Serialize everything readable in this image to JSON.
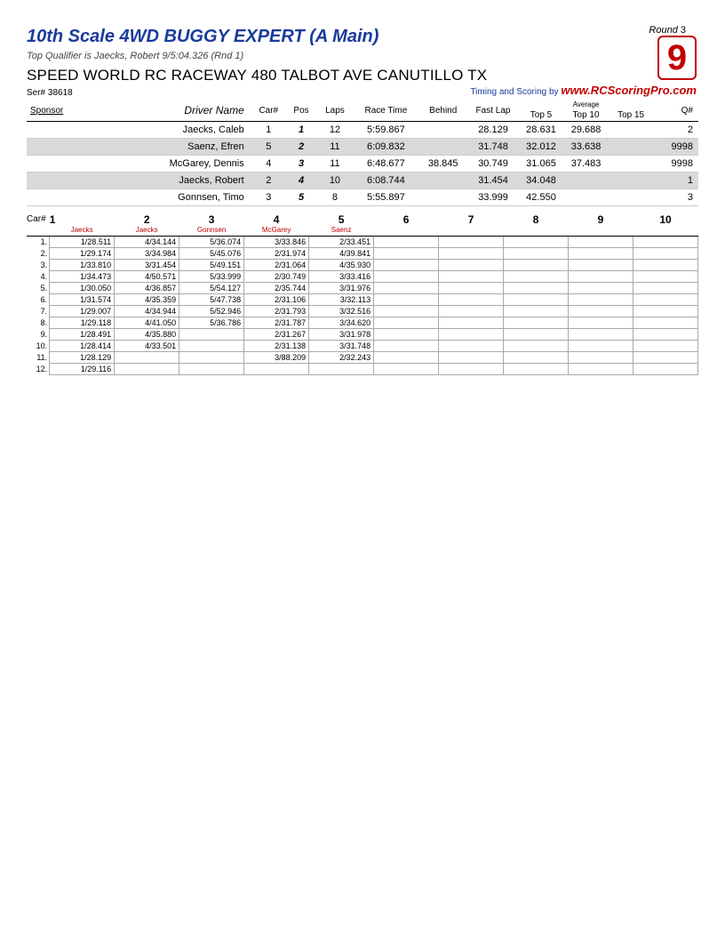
{
  "header": {
    "title": "10th Scale 4WD BUGGY EXPERT (A Main)",
    "qualifier": "Top Qualifier is Jaecks, Robert 9/5:04.326 (Rnd 1)",
    "venue": "SPEED WORLD RC RACEWAY 480 TALBOT AVE CANUTILLO TX",
    "round_label": "Round",
    "round_num": "3",
    "race_num": "9",
    "scoring_by_label": "Timing and Scoring by",
    "scoring_url": "www.RCScoringPro.com",
    "ser_label": "Ser#",
    "ser_num": "38618"
  },
  "results": {
    "columns": {
      "sponsor": "Sponsor",
      "driver": "Driver Name",
      "car": "Car#",
      "pos": "Pos",
      "laps": "Laps",
      "racetime": "Race Time",
      "behind": "Behind",
      "fastlap": "Fast Lap",
      "avg_label": "Average",
      "top5": "Top 5",
      "top10": "Top 10",
      "top15": "Top 15",
      "q": "Q#"
    },
    "rows": [
      {
        "driver": "Jaecks, Caleb",
        "car": "1",
        "pos": "1",
        "laps": "12",
        "racetime": "5:59.867",
        "behind": "",
        "fastlap": "28.129",
        "top5": "28.631",
        "top10": "29.688",
        "top15": "",
        "q": "2",
        "shaded": false
      },
      {
        "driver": "Saenz, Efren",
        "car": "5",
        "pos": "2",
        "laps": "11",
        "racetime": "6:09.832",
        "behind": "",
        "fastlap": "31.748",
        "top5": "32.012",
        "top10": "33.638",
        "top15": "",
        "q": "9998",
        "shaded": true
      },
      {
        "driver": "McGarey, Dennis",
        "car": "4",
        "pos": "3",
        "laps": "11",
        "racetime": "6:48.677",
        "behind": "38.845",
        "fastlap": "30.749",
        "top5": "31.065",
        "top10": "37.483",
        "top15": "",
        "q": "9998",
        "shaded": false
      },
      {
        "driver": "Jaecks, Robert",
        "car": "2",
        "pos": "4",
        "laps": "10",
        "racetime": "6:08.744",
        "behind": "",
        "fastlap": "31.454",
        "top5": "34.048",
        "top10": "",
        "top15": "",
        "q": "1",
        "shaded": true
      },
      {
        "driver": "Gonnsen, Timo",
        "car": "3",
        "pos": "5",
        "laps": "8",
        "racetime": "5:55.897",
        "behind": "",
        "fastlap": "33.999",
        "top5": "42.550",
        "top10": "",
        "top15": "",
        "q": "3",
        "shaded": false
      }
    ]
  },
  "lap_grid": {
    "car_label": "Car#",
    "car_nums": [
      "1",
      "2",
      "3",
      "4",
      "5",
      "6",
      "7",
      "8",
      "9",
      "10"
    ],
    "driver_names": [
      "Jaecks",
      "Jaecks",
      "Gonnsen",
      "McGarey",
      "Saenz",
      "",
      "",
      "",
      "",
      ""
    ],
    "rows": [
      [
        "1/28.511",
        "4/34.144",
        "5/36.074",
        "3/33.846",
        "2/33.451",
        "",
        "",
        "",
        "",
        ""
      ],
      [
        "1/29.174",
        "3/34.984",
        "5/45.076",
        "2/31.974",
        "4/39.841",
        "",
        "",
        "",
        "",
        ""
      ],
      [
        "1/33.810",
        "3/31.454",
        "5/49.151",
        "2/31.064",
        "4/35.930",
        "",
        "",
        "",
        "",
        ""
      ],
      [
        "1/34.473",
        "4/50.571",
        "5/33.999",
        "2/30.749",
        "3/33.416",
        "",
        "",
        "",
        "",
        ""
      ],
      [
        "1/30.050",
        "4/36.857",
        "5/54.127",
        "2/35.744",
        "3/31.976",
        "",
        "",
        "",
        "",
        ""
      ],
      [
        "1/31.574",
        "4/35.359",
        "5/47.738",
        "2/31.106",
        "3/32.113",
        "",
        "",
        "",
        "",
        ""
      ],
      [
        "1/29.007",
        "4/34.944",
        "5/52.946",
        "2/31.793",
        "3/32.516",
        "",
        "",
        "",
        "",
        ""
      ],
      [
        "1/29.118",
        "4/41.050",
        "5/36.786",
        "2/31.787",
        "3/34.620",
        "",
        "",
        "",
        "",
        ""
      ],
      [
        "1/28.491",
        "4/35.880",
        "",
        "2/31.267",
        "3/31.978",
        "",
        "",
        "",
        "",
        ""
      ],
      [
        "1/28.414",
        "4/33.501",
        "",
        "2/31.138",
        "3/31.748",
        "",
        "",
        "",
        "",
        ""
      ],
      [
        "1/28.129",
        "",
        "",
        "3/88.209",
        "2/32.243",
        "",
        "",
        "",
        "",
        ""
      ],
      [
        "1/29.116",
        "",
        "",
        "",
        "",
        "",
        "",
        "",
        "",
        ""
      ]
    ]
  }
}
